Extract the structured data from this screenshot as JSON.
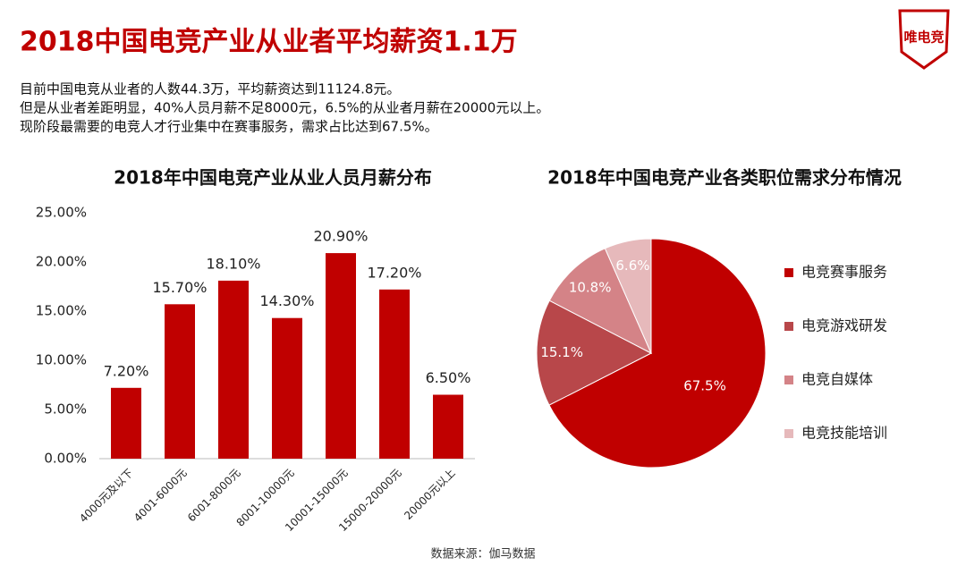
{
  "header": {
    "title": "2018中国电竞产业从业者平均薪资1.1万",
    "logo": "唯电竞"
  },
  "paragraphs": [
    "目前中国电竞从业者的人数44.3万，平均薪资达到11124.8元。",
    "但是从业者差距明显，40%人员月薪不足8000元，6.5%的从业者月薪在20000元以上。",
    "现阶段最需要的电竞人才行业集中在赛事服务，需求占比达到67.5%。"
  ],
  "chart_data": [
    {
      "type": "bar",
      "title": "2018年中国电竞产业从业人员月薪分布",
      "categories": [
        "4000元及以下",
        "4001-6000元",
        "6001-8000元",
        "8001-10000元",
        "10001-15000元",
        "15000-20000元",
        "20000元以上"
      ],
      "values": [
        7.2,
        15.7,
        18.1,
        14.3,
        20.9,
        17.2,
        6.5
      ],
      "value_labels": [
        "7.20%",
        "15.70%",
        "18.10%",
        "14.30%",
        "20.90%",
        "17.20%",
        "6.50%"
      ],
      "color": "#c00000",
      "ylim": [
        0,
        25
      ],
      "yticks": [
        {
          "value": 0,
          "label": "0.00%"
        },
        {
          "value": 5,
          "label": "5.00%"
        },
        {
          "value": 10,
          "label": "10.00%"
        },
        {
          "value": 15,
          "label": "15.00%"
        },
        {
          "value": 20,
          "label": "20.00%"
        },
        {
          "value": 25,
          "label": "25.00%"
        }
      ]
    },
    {
      "type": "pie",
      "title": "2018年中国电竞产业各类职位需求分布情况",
      "categories": [
        "电竞赛事服务",
        "电竞游戏研发",
        "电竞自媒体",
        "电竞技能培训"
      ],
      "values": [
        67.5,
        15.1,
        10.8,
        6.6
      ],
      "value_labels": [
        "67.5%",
        "15.1%",
        "10.8%",
        "6.6%"
      ],
      "colors": [
        "#c00000",
        "#b8474a",
        "#d48387",
        "#e6b9bb"
      ],
      "legend": "right"
    }
  ],
  "source": "数据来源：伽马数据"
}
